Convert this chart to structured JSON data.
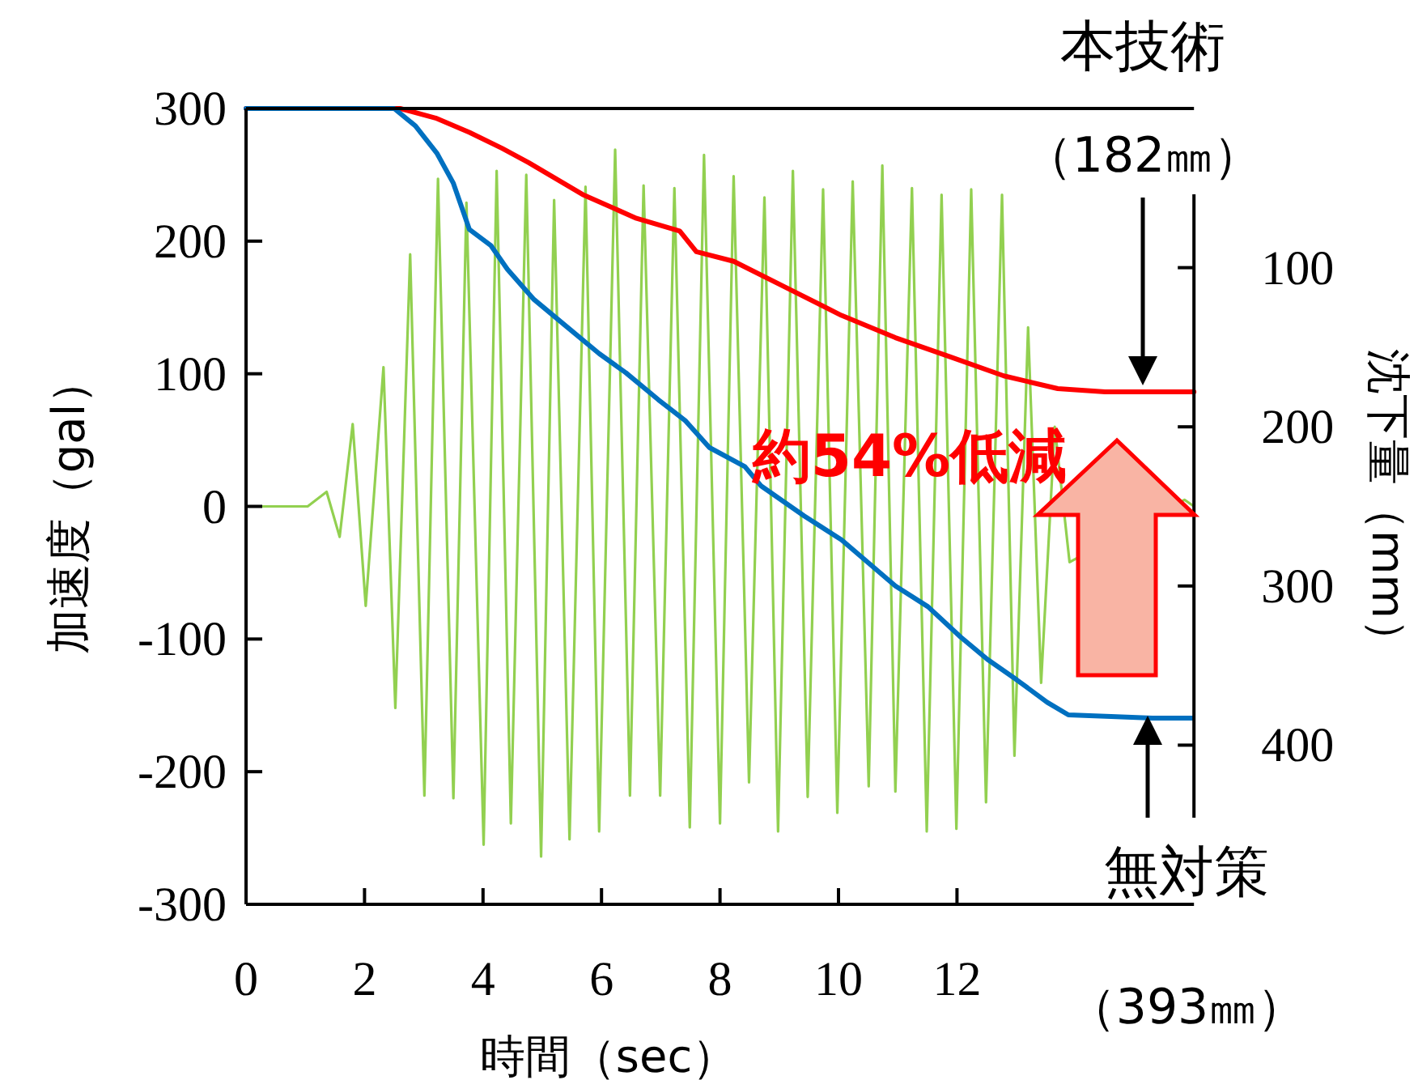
{
  "chart_data": {
    "type": "line",
    "xlabel": "時間（sec）",
    "ylabel": "加速度（gal）",
    "y2label": "沈下量（mm）",
    "xlim": [
      0,
      16
    ],
    "xticks": [
      0,
      2,
      4,
      6,
      8,
      10,
      12
    ],
    "ylim": [
      -300,
      300
    ],
    "yticks": [
      -300,
      -200,
      -100,
      0,
      100,
      200,
      300
    ],
    "y2lim": [
      500,
      0
    ],
    "y2ticks": [
      100,
      200,
      300,
      400
    ],
    "grid": false,
    "marker": "none",
    "line_style": "solid",
    "series": [
      {
        "color": "#92d050",
        "x": [
          0,
          1.04,
          1.36,
          1.58,
          1.8,
          2.02,
          2.32,
          2.52,
          2.77,
          3.01,
          3.24,
          3.5,
          3.72,
          4.01,
          4.23,
          4.47,
          4.73,
          4.98,
          5.2,
          5.46,
          5.73,
          5.96,
          6.23,
          6.48,
          6.71,
          6.99,
          7.23,
          7.49,
          7.73,
          8.0,
          8.23,
          8.49,
          8.75,
          8.98,
          9.23,
          9.48,
          9.74,
          9.98,
          10.24,
          10.51,
          10.74,
          10.96,
          11.24,
          11.49,
          11.74,
          11.99,
          12.24,
          12.49,
          12.76,
          12.97,
          13.2,
          13.42,
          13.65,
          13.9,
          15.84,
          16
        ],
        "values": [
          0,
          0,
          11,
          -23,
          62,
          -75,
          105,
          -152,
          190,
          -218,
          247,
          -220,
          229,
          -255,
          253,
          -239,
          250,
          -264,
          231,
          -251,
          241,
          -245,
          269,
          -218,
          242,
          -218,
          240,
          -242,
          265,
          -239,
          249,
          -208,
          233,
          -245,
          253,
          -219,
          239,
          -231,
          245,
          -211,
          257,
          -215,
          240,
          -245,
          235,
          -243,
          239,
          -223,
          235,
          -188,
          135,
          -133,
          60,
          -42,
          5,
          0
        ]
      },
      {
        "color": "#ff0000",
        "axis": "y2",
        "x": [
          0,
          2.6,
          3.2,
          3.77,
          4.32,
          4.77,
          5.68,
          6.59,
          7.32,
          7.6,
          8.23,
          9.14,
          10.05,
          10.96,
          11.88,
          12.79,
          13.7,
          14.5,
          15.3,
          16
        ],
        "values": [
          0,
          0,
          6,
          15,
          25,
          34,
          54,
          69,
          77,
          90,
          96,
          113,
          130,
          144,
          156,
          168,
          176,
          178,
          178,
          178
        ]
      },
      {
        "color": "#0070c0",
        "axis": "y2",
        "x": [
          0,
          2.5,
          2.86,
          3.22,
          3.5,
          3.77,
          4.13,
          4.41,
          4.86,
          5.41,
          5.96,
          6.41,
          6.96,
          7.41,
          7.82,
          8.42,
          8.69,
          9.42,
          10.05,
          10.96,
          11.51,
          12.06,
          12.51,
          13.01,
          13.52,
          13.88,
          14.6,
          15.3,
          15.98
        ],
        "values": [
          0,
          0,
          11,
          28,
          47,
          76,
          86,
          101,
          120,
          137,
          154,
          166,
          183,
          196,
          213,
          225,
          237,
          256,
          271,
          300,
          313,
          332,
          346,
          359,
          373,
          381,
          382,
          383,
          383
        ]
      }
    ],
    "annotations": [
      "本技術",
      "（182㎜）",
      "無対策",
      "（393㎜）",
      "約54%低減"
    ]
  }
}
